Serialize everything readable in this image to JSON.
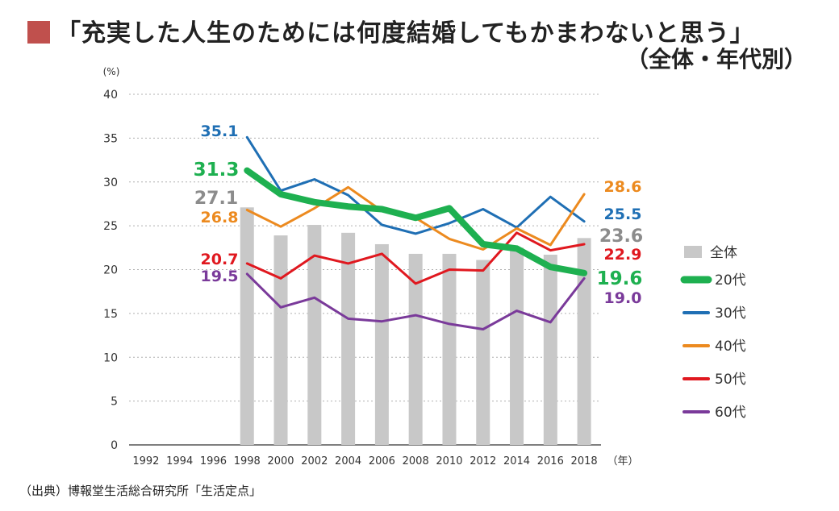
{
  "header": {
    "title": "「充実した人生のためには何度結婚してもかまわないと思う」",
    "subtitle": "（全体・年代別）"
  },
  "source": "（出典）博報堂生活総合研究所「生活定点」",
  "colors": {
    "title_marker": "#c0504d",
    "bars": "#c8c8c8",
    "grid": "#b0b0b0"
  },
  "chart_data": {
    "type": "bar",
    "y_unit_label": "(%)",
    "x_unit_label": "（年）",
    "ylim": [
      0,
      40
    ],
    "yticks": [
      0,
      5,
      10,
      15,
      20,
      25,
      30,
      35,
      40
    ],
    "grid": true,
    "legend_placement": "right",
    "categories": [
      "1992",
      "1994",
      "1996",
      "1998",
      "2000",
      "2002",
      "2004",
      "2006",
      "2008",
      "2010",
      "2012",
      "2014",
      "2016",
      "2018"
    ],
    "bar_series": {
      "name": "全体",
      "color": "#c8c8c8",
      "values": [
        null,
        null,
        null,
        27.1,
        23.9,
        25.1,
        24.2,
        22.9,
        21.8,
        21.8,
        21.1,
        22.5,
        21.7,
        23.6
      ]
    },
    "line_series": [
      {
        "name": "20代",
        "color": "#1eb050",
        "width": 8,
        "values": [
          null,
          null,
          null,
          31.3,
          28.6,
          27.7,
          27.2,
          26.9,
          25.9,
          27.0,
          22.9,
          22.4,
          20.3,
          19.6
        ]
      },
      {
        "name": "30代",
        "color": "#1f6fb4",
        "width": 3,
        "values": [
          null,
          null,
          null,
          35.1,
          29.0,
          30.3,
          28.5,
          25.1,
          24.1,
          25.3,
          26.9,
          24.8,
          28.3,
          25.5
        ]
      },
      {
        "name": "40代",
        "color": "#ec8a1f",
        "width": 3,
        "values": [
          null,
          null,
          null,
          26.8,
          24.9,
          27.0,
          29.4,
          26.7,
          25.9,
          23.5,
          22.3,
          24.7,
          22.8,
          28.6
        ]
      },
      {
        "name": "50代",
        "color": "#e0181f",
        "width": 3,
        "values": [
          null,
          null,
          null,
          20.7,
          19.0,
          21.6,
          20.7,
          21.8,
          18.4,
          20.0,
          19.9,
          24.2,
          22.2,
          22.9
        ]
      },
      {
        "name": "60代",
        "color": "#7a3a9a",
        "width": 3,
        "values": [
          null,
          null,
          null,
          19.5,
          15.7,
          16.8,
          14.4,
          14.1,
          14.8,
          13.8,
          13.2,
          15.3,
          14.0,
          19.0
        ]
      }
    ],
    "annotations": [
      {
        "text": "35.1",
        "series": "30代",
        "color": "#1f6fb4"
      },
      {
        "text": "31.3",
        "series": "20代",
        "color": "#1eb050"
      },
      {
        "text": "27.1",
        "series": "全体",
        "color": "#8c8c8c"
      },
      {
        "text": "26.8",
        "series": "40代",
        "color": "#ec8a1f"
      },
      {
        "text": "20.7",
        "series": "50代",
        "color": "#e0181f"
      },
      {
        "text": "19.5",
        "series": "60代",
        "color": "#7a3a9a"
      },
      {
        "text": "28.6",
        "series": "40代",
        "color": "#ec8a1f"
      },
      {
        "text": "25.5",
        "series": "30代",
        "color": "#1f6fb4"
      },
      {
        "text": "23.6",
        "series": "全体",
        "color": "#8c8c8c"
      },
      {
        "text": "22.9",
        "series": "50代",
        "color": "#e0181f"
      },
      {
        "text": "19.6",
        "series": "20代",
        "color": "#1eb050"
      },
      {
        "text": "19.0",
        "series": "60代",
        "color": "#7a3a9a"
      }
    ]
  }
}
